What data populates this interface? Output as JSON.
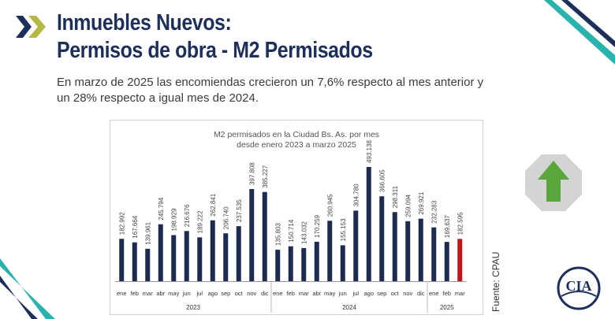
{
  "header": {
    "title_line1": "Inmuebles Nuevos:",
    "title_line2": "Permisos de obra - M2 Permisados",
    "subtitle": "En marzo de 2025 las encomiendas crecieron un 7,6% respecto al mes anterior y un 28% respecto a igual mes de 2024."
  },
  "source": "Fuente: CPAU",
  "logo_text": "CIA",
  "colors": {
    "title": "#1d2f5b",
    "bar": "#1c2b4f",
    "bar_highlight": "#c0141c",
    "chevron_dark": "#1d2f5b",
    "chevron_light": "#b6b845",
    "stripe_teal": "#2ab3ad",
    "badge_bg": "#d4d4d4",
    "badge_arrow": "#5aa63c"
  },
  "icons": {
    "trend": "up-arrow-icon",
    "chevrons": "double-chevron-icon"
  },
  "chart_data": {
    "type": "bar",
    "title": "M2 permisados en la Ciudad Bs. As. por mes",
    "subtitle": "desde enero 2023 a marzo 2025",
    "categories": [
      "ene",
      "feb",
      "mar",
      "abr",
      "may",
      "jun",
      "jul",
      "ago",
      "sep",
      "oct",
      "nov",
      "dic",
      "ene",
      "feb",
      "mar",
      "abr",
      "may",
      "jun",
      "jul",
      "ago",
      "sep",
      "oct",
      "nov",
      "dic",
      "ene",
      "feb",
      "mar"
    ],
    "years": [
      {
        "label": "2023",
        "count": 12
      },
      {
        "label": "2024",
        "count": 12
      },
      {
        "label": "2025",
        "count": 3
      }
    ],
    "values": [
      182992,
      167664,
      139961,
      245794,
      198929,
      216676,
      189222,
      262841,
      206740,
      237535,
      397808,
      385227,
      135803,
      150714,
      143032,
      170259,
      260945,
      155153,
      304780,
      493138,
      366605,
      298311,
      259094,
      269921,
      232283,
      169637,
      182595
    ],
    "labels": [
      "182.992",
      "167.664",
      "139.961",
      "245.794",
      "198.929",
      "216.676",
      "189.222",
      "262.841",
      "206.740",
      "237.535",
      "397.808",
      "385.227",
      "135.803",
      "150.714",
      "143.032",
      "170.259",
      "260.945",
      "155.153",
      "304.780",
      "493.138",
      "366.605",
      "298.311",
      "259.094",
      "269.921",
      "232.283",
      "169.637",
      "182.595"
    ],
    "highlight_index": 26,
    "xlabel": "",
    "ylabel": "",
    "ylim": [
      0,
      500000
    ],
    "legend": "none",
    "grid": false
  }
}
